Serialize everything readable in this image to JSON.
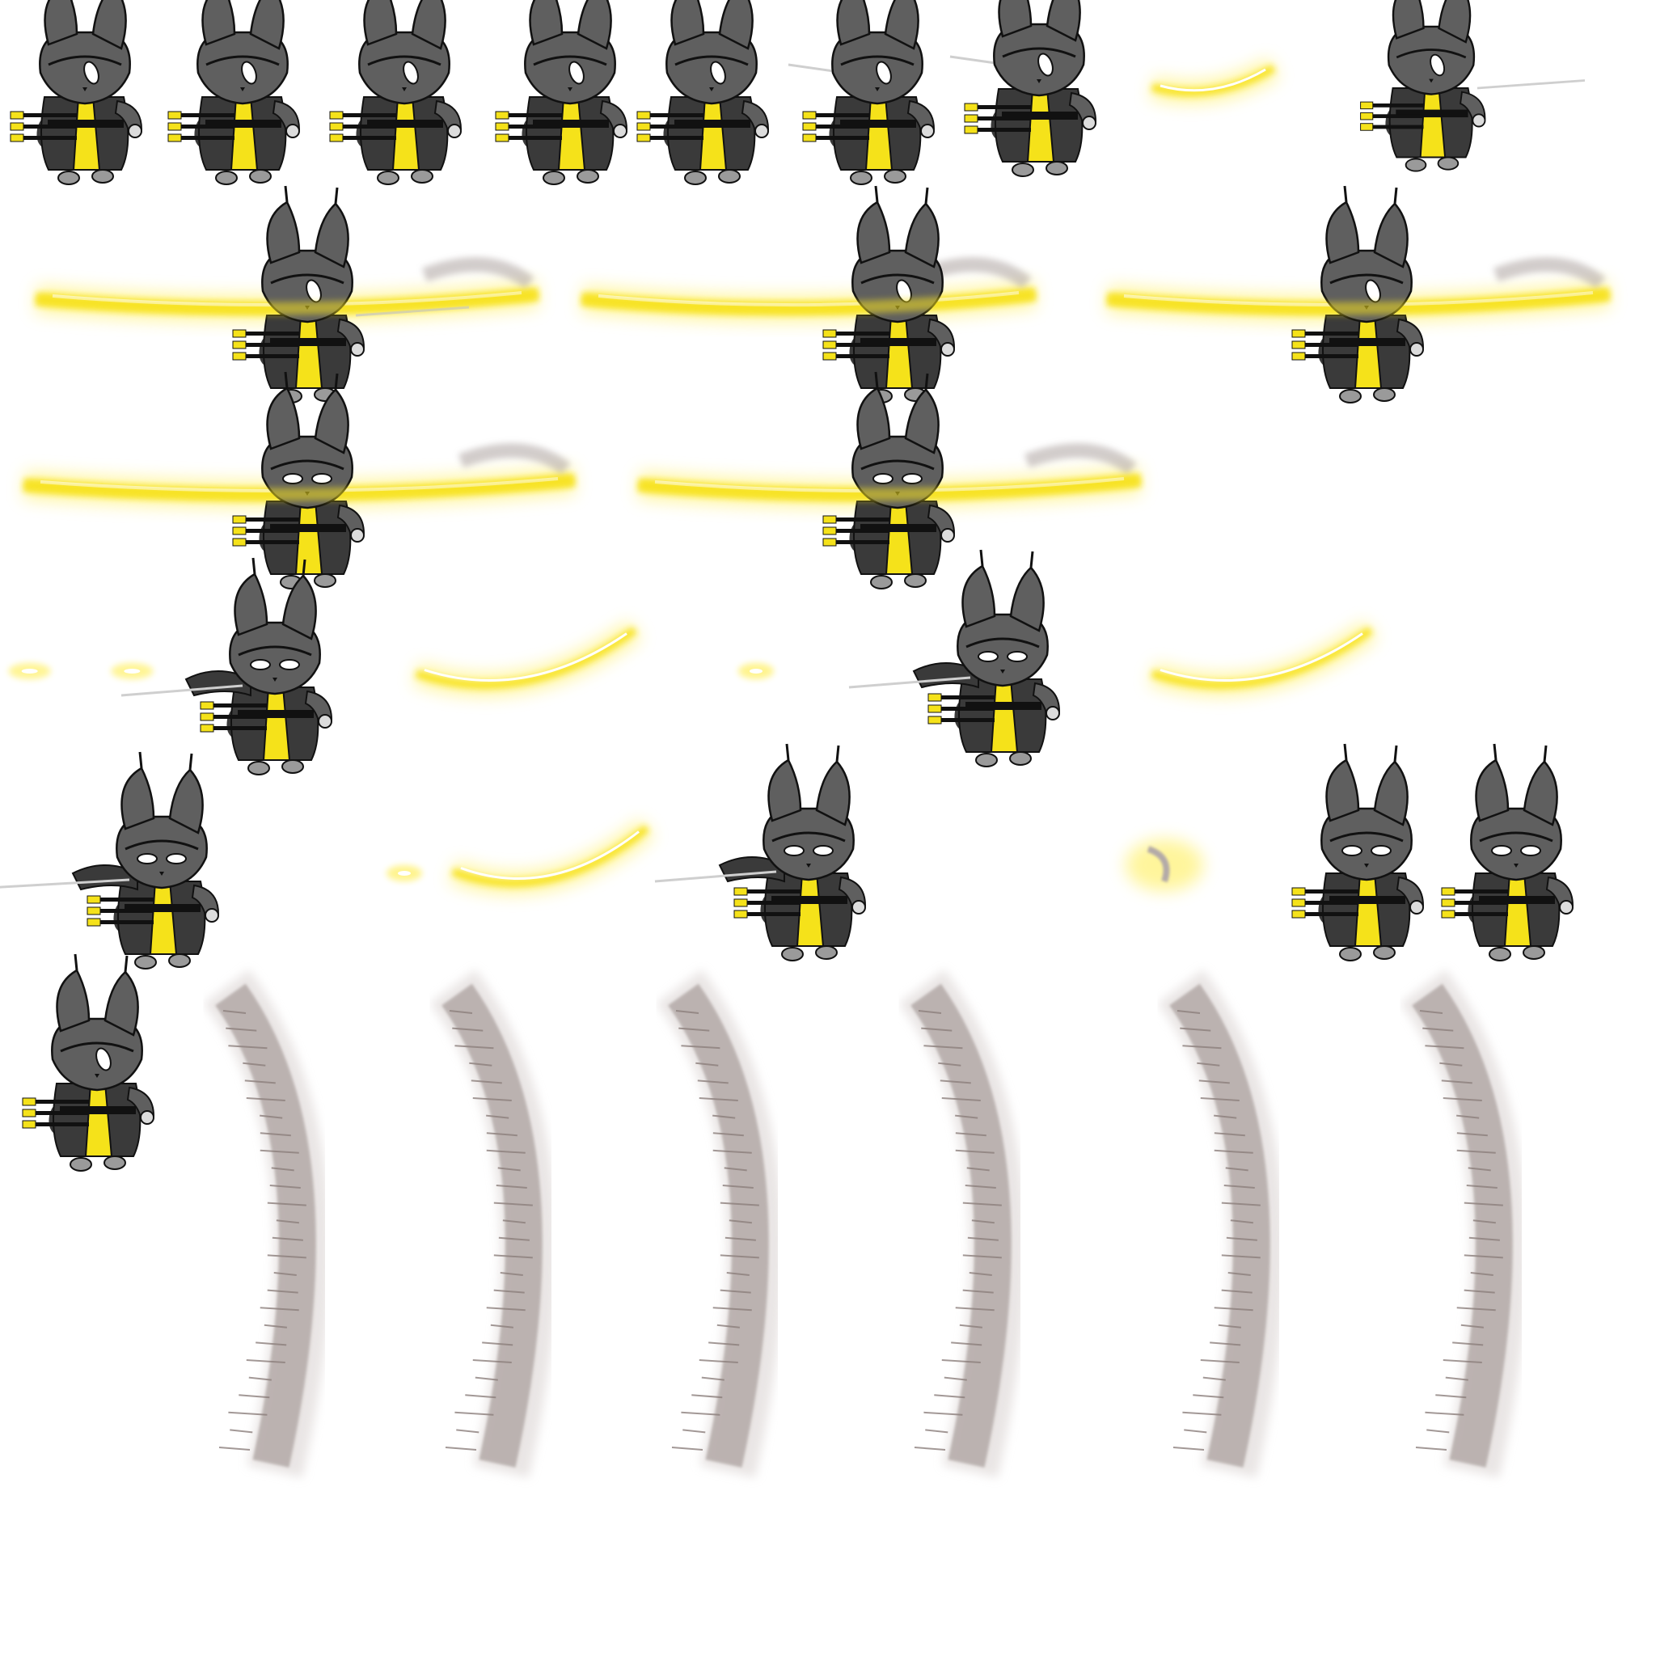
{
  "sheet": {
    "background": "#ffffff",
    "character_colors": {
      "body": "#5f5f5f",
      "dark": "#3a3a3a",
      "ink": "#111111",
      "accent": "#f5e21a",
      "eye": "#ffffff"
    },
    "effect_colors": {
      "glow": "#fff27a",
      "glow_core": "#f7e21b",
      "glow_white": "#ffffff",
      "dust": "#b4aaa8",
      "dust_dark": "#8c7f7c",
      "dust_light": "#e1dbda"
    }
  },
  "frames": [
    {
      "name": "idle-1",
      "kind": "character",
      "pose": "crouch"
    },
    {
      "name": "idle-2",
      "kind": "character",
      "pose": "crouch"
    },
    {
      "name": "idle-3",
      "kind": "character",
      "pose": "crouch"
    },
    {
      "name": "idle-4",
      "kind": "character",
      "pose": "crouch"
    },
    {
      "name": "idle-5",
      "kind": "character",
      "pose": "crouch"
    },
    {
      "name": "draw-1",
      "kind": "character",
      "pose": "draw"
    },
    {
      "name": "draw-2",
      "kind": "character",
      "pose": "draw-high"
    },
    {
      "name": "slash-glow-small",
      "kind": "effect",
      "effect": "glow-arc"
    },
    {
      "name": "dash-1",
      "kind": "character",
      "pose": "dash"
    },
    {
      "name": "big-slash-1",
      "kind": "combo",
      "effect": "glow-stripe",
      "pose": "thrust"
    },
    {
      "name": "big-slash-2",
      "kind": "combo",
      "effect": "glow-stripe",
      "pose": "swing"
    },
    {
      "name": "big-slash-3",
      "kind": "combo",
      "effect": "glow-stripe",
      "pose": "swing"
    },
    {
      "name": "big-slash-4",
      "kind": "combo",
      "effect": "glow-stripe",
      "pose": "front"
    },
    {
      "name": "big-slash-5",
      "kind": "combo",
      "effect": "glow-stripe",
      "pose": "front"
    },
    {
      "name": "sparkle-1",
      "kind": "effect",
      "effect": "glow-dots"
    },
    {
      "name": "attack-left-1",
      "kind": "character",
      "pose": "sword-left"
    },
    {
      "name": "slash-glow-medium",
      "kind": "effect",
      "effect": "glow-arc"
    },
    {
      "name": "sparkle-2",
      "kind": "effect",
      "effect": "glow-dot"
    },
    {
      "name": "attack-left-2",
      "kind": "character",
      "pose": "sword-left"
    },
    {
      "name": "slash-glow-medium-2",
      "kind": "effect",
      "effect": "glow-arc"
    },
    {
      "name": "attack-left-3",
      "kind": "character",
      "pose": "sword-left-long"
    },
    {
      "name": "sparkle-3",
      "kind": "effect",
      "effect": "glow-dot"
    },
    {
      "name": "slash-glow-arc",
      "kind": "effect",
      "effect": "glow-arc"
    },
    {
      "name": "attack-left-4",
      "kind": "character",
      "pose": "sword-left"
    },
    {
      "name": "slash-glow-tiny",
      "kind": "effect",
      "effect": "glow-tiny"
    },
    {
      "name": "recover-1",
      "kind": "character",
      "pose": "crouch-front"
    },
    {
      "name": "recover-2",
      "kind": "character",
      "pose": "crouch-front"
    },
    {
      "name": "recover-3",
      "kind": "character",
      "pose": "crouch"
    },
    {
      "name": "dust-wave-1",
      "kind": "effect",
      "effect": "dust-crescent"
    },
    {
      "name": "dust-wave-2",
      "kind": "effect",
      "effect": "dust-crescent"
    },
    {
      "name": "dust-wave-3",
      "kind": "effect",
      "effect": "dust-crescent"
    },
    {
      "name": "dust-wave-4",
      "kind": "effect",
      "effect": "dust-crescent"
    },
    {
      "name": "dust-wave-5",
      "kind": "effect",
      "effect": "dust-crescent"
    },
    {
      "name": "dust-wave-6",
      "kind": "effect",
      "effect": "dust-crescent"
    }
  ]
}
